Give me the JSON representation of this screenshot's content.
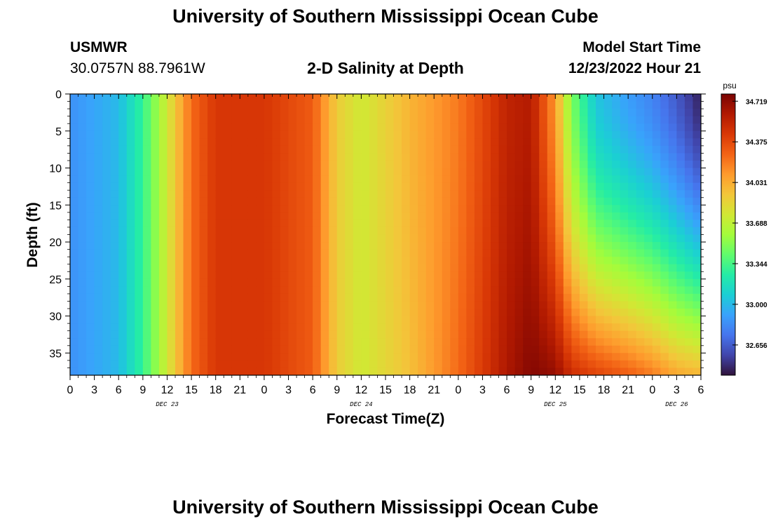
{
  "header": {
    "title": "University of Southern Mississippi Ocean Cube",
    "station": "USMWR",
    "coords": "30.0757N  88.7961W",
    "subtitle": "2-D Salinity at Depth",
    "start_label": "Model Start Time",
    "start_value": "12/23/2022 Hour 21"
  },
  "footer": {
    "title": "University of Southern Mississippi Ocean Cube"
  },
  "colors": {
    "palette": [
      "#30123b",
      "#4145ab",
      "#4675ed",
      "#39a2fc",
      "#1bcfd4",
      "#24eca6",
      "#61fc6c",
      "#a4fc3b",
      "#d1e834",
      "#f3c63a",
      "#fe9b2d",
      "#f36315",
      "#d93806",
      "#b11901",
      "#7a0402"
    ]
  },
  "chart_data": {
    "type": "heatmap",
    "xlabel": "Forecast Time(Z)",
    "ylabel": "Depth (ft)",
    "x_tick_labels": [
      "0",
      "3",
      "6",
      "9",
      "12",
      "15",
      "18",
      "21",
      "0",
      "3",
      "6",
      "9",
      "12",
      "15",
      "18",
      "21",
      "0",
      "3",
      "6",
      "9",
      "12",
      "15",
      "18",
      "21",
      "0",
      "3",
      "6"
    ],
    "x_range_hours": [
      0,
      78
    ],
    "date_labels": [
      {
        "label": "DEC 23",
        "hour": 12
      },
      {
        "label": "DEC 24",
        "hour": 36
      },
      {
        "label": "DEC 25",
        "hour": 60
      },
      {
        "label": "DEC 26",
        "hour": 75
      }
    ],
    "y_ticks": [
      0,
      5,
      10,
      15,
      20,
      25,
      30,
      35
    ],
    "ylim": [
      0,
      38
    ],
    "y_inverted": true,
    "colorbar": {
      "unit": "psu",
      "tick_labels": [
        "34.719",
        "34.375",
        "34.031",
        "33.688",
        "33.344",
        "33.000",
        "32.656"
      ],
      "ticks": [
        34.719,
        34.375,
        34.031,
        33.688,
        33.344,
        33.0,
        32.656
      ],
      "range": [
        32.4,
        34.78
      ]
    },
    "surface_profile": {
      "hours": [
        0,
        6,
        9,
        12,
        15,
        18,
        24,
        30,
        33,
        36,
        42,
        48,
        54,
        57,
        60,
        62,
        65,
        69,
        72,
        75,
        78
      ],
      "values": [
        32.85,
        33.0,
        33.3,
        33.75,
        34.25,
        34.45,
        34.45,
        34.3,
        33.9,
        33.75,
        34.0,
        34.2,
        34.55,
        34.6,
        34.1,
        33.5,
        33.05,
        32.9,
        32.8,
        32.65,
        32.45
      ]
    },
    "bottom_profile": {
      "hours": [
        0,
        6,
        9,
        12,
        15,
        18,
        24,
        30,
        33,
        36,
        42,
        48,
        54,
        57,
        60,
        62,
        65,
        69,
        72,
        75,
        78
      ],
      "values": [
        32.85,
        33.0,
        33.3,
        33.75,
        34.25,
        34.45,
        34.45,
        34.3,
        33.9,
        33.75,
        33.95,
        34.25,
        34.62,
        34.75,
        34.7,
        34.5,
        34.4,
        34.3,
        34.2,
        34.05,
        34.0
      ]
    }
  }
}
